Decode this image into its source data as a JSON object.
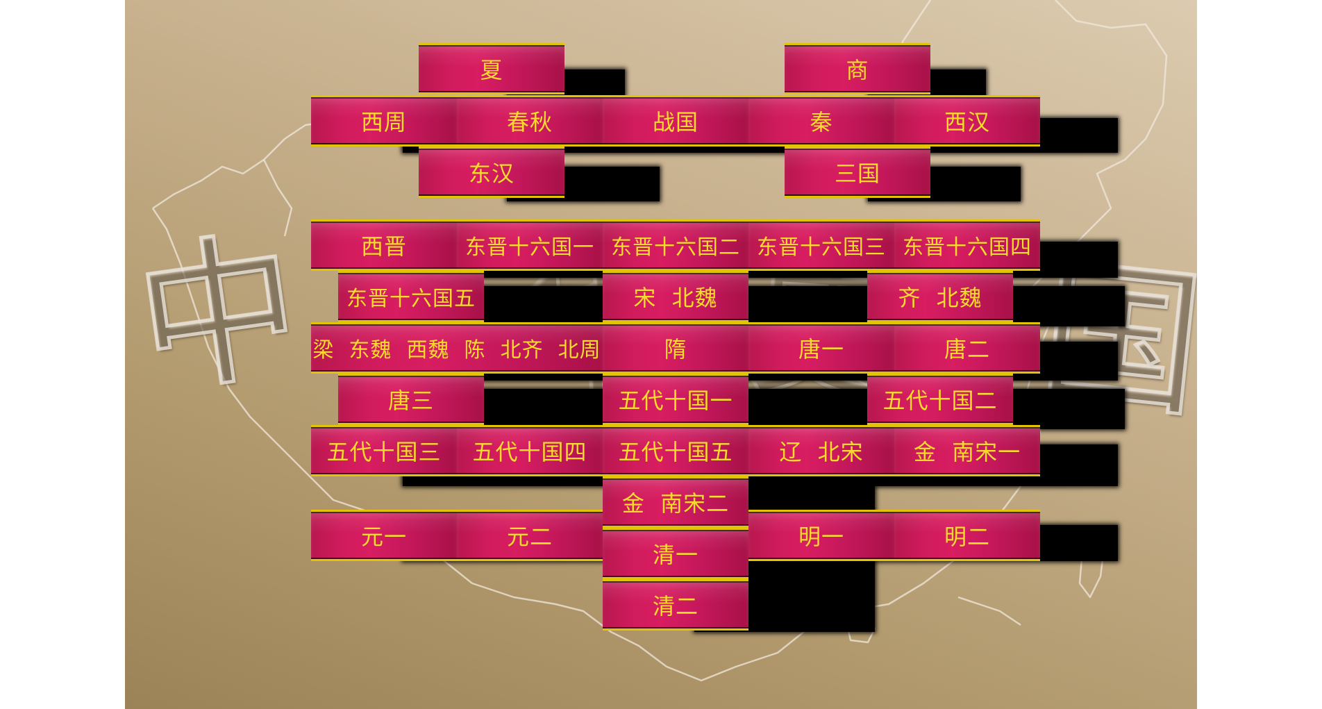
{
  "background_watermark": [
    "中",
    "华",
    "史",
    "国"
  ],
  "colors": {
    "tile": "#d21c5e",
    "tile_text": "#f5dc2a",
    "tile_border": "#e3c20a",
    "background": "#c8b28f"
  },
  "tiles": {
    "xia": "夏",
    "shang": "商",
    "xizhou": "西周",
    "chunqiu": "春秋",
    "zhanguo": "战国",
    "qin": "秦",
    "xihan": "西汉",
    "donghan": "东汉",
    "sanguo": "三国",
    "xijin": "西晋",
    "dongjin1": "东晋十六国一",
    "dongjin2": "东晋十六国二",
    "dongjin3": "东晋十六国三",
    "dongjin4": "东晋十六国四",
    "dongjin5": "东晋十六国五",
    "song_beiwei": "宋  北魏",
    "qi_beiwei": "齐  北魏",
    "liang_chen": "梁  东魏  西魏  陈  北齐  北周",
    "sui": "隋",
    "tang1": "唐一",
    "tang2": "唐二",
    "tang3": "唐三",
    "wudai1": "五代十国一",
    "wudai2": "五代十国二",
    "wudai3": "五代十国三",
    "wudai4": "五代十国四",
    "wudai5": "五代十国五",
    "liao_beisong": "辽  北宋",
    "jin_nansong1": "金  南宋一",
    "jin_nansong2": "金  南宋二",
    "yuan1": "元一",
    "yuan2": "元二",
    "qing1": "清一",
    "qing2": "清二",
    "ming1": "明一",
    "ming2": "明二"
  }
}
